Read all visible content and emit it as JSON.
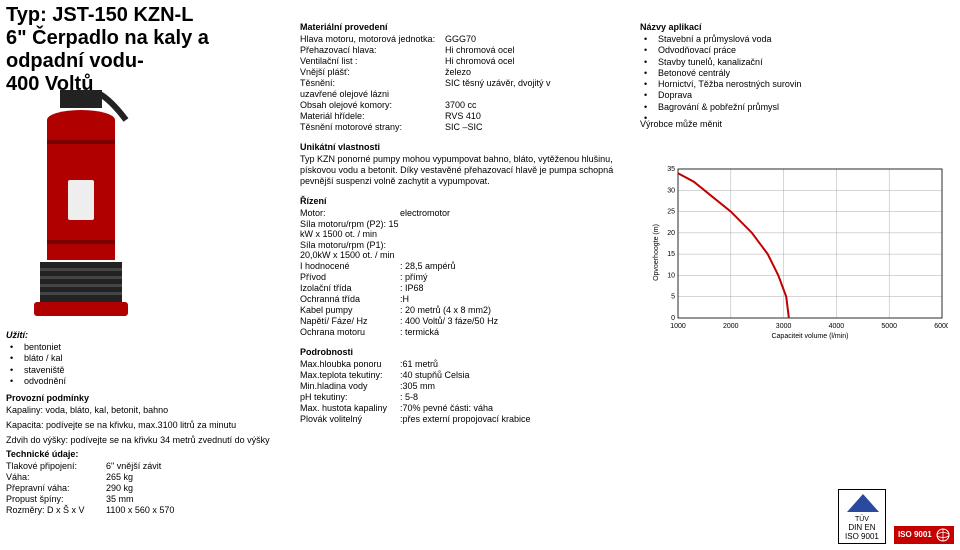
{
  "header": {
    "l1": "Typ: JST-150 KZN-L",
    "l2": "6\" Čerpadlo na kaly a",
    "l3": "odpadní vodu-",
    "l4": "400 Voltů"
  },
  "usage_title": "Užití:",
  "usage_items": [
    "bentoniet",
    "bláto / kal",
    "staveniště",
    "odvodnění"
  ],
  "op_cond": {
    "title": "Provozní podmínky",
    "l1": "Kapaliny: voda, bláto, kal, betonit, bahno",
    "l2": "Kapacita: podívejte se na křivku, max.3100 litrů za minutu",
    "l3": "Zdvih do výšky: podívejte se na křivku 34 metrů zvednutí do výšky"
  },
  "tech": {
    "title": "Technické údaje:",
    "items": [
      {
        "k": "Tlakové připojení:",
        "v": "6\" vnější závit"
      },
      {
        "k": "Váha:",
        "v": "265 kg"
      },
      {
        "k": "Přepravní váha:",
        "v": "290 kg"
      },
      {
        "k": "Propust špíny:",
        "v": "35 mm"
      },
      {
        "k": "Rozměry: D x Š x V",
        "v": "1100 x 560 x 570"
      }
    ]
  },
  "material": {
    "title": "Materiální provedení",
    "items": [
      {
        "k": "Hlava motoru, motorová jednotka:",
        "v": "GGG70"
      },
      {
        "k": "Přehazovací hlava:",
        "v": "Hi chromová ocel"
      },
      {
        "k": "Ventilační list :",
        "v": "Hi chromová ocel"
      },
      {
        "k": "Vnější plášť:",
        "v": "železo"
      },
      {
        "k": "Těsnění:",
        "v": "SIC těsný uzávěr, dvojitý v"
      },
      {
        "k": "uzavřené olejové lázni",
        "v": ""
      },
      {
        "k": "Obsah olejové komory:",
        "v": "3700 cc"
      },
      {
        "k": "Materiál hřídele:",
        "v": "RVS 410"
      },
      {
        "k": "Těsnění motorové strany:",
        "v": "SIC –SIC"
      }
    ]
  },
  "unique": {
    "title": "Unikátní vlastnosti",
    "text": "Typ KZN ponorné pumpy mohou vypumpovat bahno, bláto, vytěženou hlušinu, pískovou vodu a betonit. Díky vestavěné přehazovací hlavě je pumpa schopná pevnější suspenzi volně zachytit a vypumpovat."
  },
  "control": {
    "title": "Řízení",
    "items": [
      {
        "k": "Motor:",
        "v": "electromotor"
      },
      {
        "k": "Síla motoru/rpm (P2): 15 kW x 1500 ot. / min",
        "v": ""
      },
      {
        "k": "Síla motoru/rpm (P1): 20,0kW x 1500 ot. / min",
        "v": ""
      },
      {
        "k": "I hodnocené",
        "v": ": 28,5 ampérů"
      },
      {
        "k": "Přívod",
        "v": ": přímý"
      },
      {
        "k": "Izolační třída",
        "v": ": IP68"
      },
      {
        "k": "Ochranná třída",
        "v": ":H"
      },
      {
        "k": "Kabel pumpy",
        "v": ": 20 metrů (4 x 8 mm2)"
      },
      {
        "k": "Napětí/ Fáze/ Hz",
        "v": ": 400 Voltů/ 3 fáze/50 Hz"
      },
      {
        "k": "Ochrana motoru",
        "v": ": termická"
      }
    ]
  },
  "details": {
    "title": "Podrobnosti",
    "items": [
      {
        "k": "Max.hloubka ponoru",
        "v": ":61 metrů"
      },
      {
        "k": "Max.teplota tekutiny:",
        "v": ":40 stupňů Celsia"
      },
      {
        "k": "Min.hladina vody",
        "v": ":305 mm"
      },
      {
        "k": "pH tekutiny:",
        "v": ": 5-8"
      },
      {
        "k": "Max. hustota kapaliny",
        "v": ":70% pevné části: váha"
      },
      {
        "k": "Plovák volitelný",
        "v": ":přes externí propojovací krabice"
      }
    ]
  },
  "apps": {
    "title": "Názvy aplikací",
    "items": [
      "Stavební a průmyslová voda",
      "Odvodňovací práce",
      "Stavby tunelů, kanalizační",
      "Betonové centrály",
      "Hornictví, Těžba nerostných surovin",
      "Doprava",
      "Bagrování & pobřežní průmysl",
      ""
    ]
  },
  "chart": {
    "manuf_label": "Výrobce může měnit",
    "y_label": "Opvoerhoogte (m)",
    "x_label": "Capaciteit volume (l/min)",
    "y_ticks": [
      0,
      5,
      10,
      15,
      20,
      25,
      30,
      35
    ],
    "x_ticks": [
      1000,
      2000,
      3000,
      4000,
      5000,
      6000
    ],
    "y_min": 0,
    "y_max": 35,
    "x_min": 1000,
    "x_max": 6000,
    "curve_color": "#c00000",
    "grid_color": "#999999",
    "axis_color": "#000000",
    "fontsize": 7,
    "points": [
      {
        "x": 1000,
        "y": 34
      },
      {
        "x": 1300,
        "y": 32
      },
      {
        "x": 1600,
        "y": 29
      },
      {
        "x": 2000,
        "y": 25
      },
      {
        "x": 2400,
        "y": 20
      },
      {
        "x": 2700,
        "y": 15
      },
      {
        "x": 2900,
        "y": 10
      },
      {
        "x": 3050,
        "y": 5
      },
      {
        "x": 3100,
        "y": 0
      }
    ]
  },
  "logos": {
    "tuv": "TÜV",
    "din": "DIN EN ISO 9001",
    "iso": "ISO 9001"
  },
  "pump_color": "#b00000"
}
